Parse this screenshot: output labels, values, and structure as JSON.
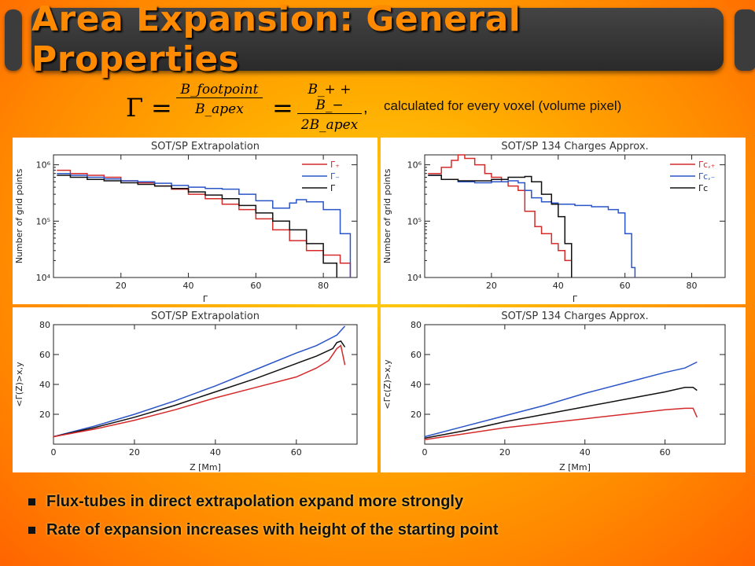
{
  "slide": {
    "title": "Area Expansion: General Properties",
    "formula": {
      "lhs": "Γ",
      "equals": "=",
      "frac1_num": "B_footpoint",
      "frac1_den": "B_apex",
      "frac2_num": "B_+ + B_−",
      "frac2_den": "2B_apex",
      "comma": ",",
      "note": "calculated for every voxel (volume pixel)"
    },
    "bullets": [
      "Flux-tubes in direct extrapolation expand more strongly",
      "Rate of expansion increases with height of the starting point"
    ]
  },
  "colors": {
    "red": "#d42a2a",
    "blue": "#2a55c8",
    "black": "#111111"
  },
  "chart_data": [
    {
      "type": "line",
      "title": "SOT/SP Extrapolation",
      "xlabel": "Γ",
      "ylabel": "Number of grid points",
      "xlim": [
        0,
        90
      ],
      "ylim": [
        10000,
        1500000
      ],
      "yscale": "log",
      "xticks": [
        "20",
        "40",
        "60",
        "80"
      ],
      "yticks": [
        "10⁴",
        "10⁵",
        "10⁶"
      ],
      "legend": "top-right",
      "series": [
        {
          "name": "Γ₊",
          "color": "red",
          "x": [
            1,
            5,
            10,
            15,
            20,
            25,
            30,
            35,
            40,
            45,
            50,
            55,
            60,
            65,
            70,
            75,
            80,
            85,
            88
          ],
          "y": [
            800000,
            700000,
            650000,
            600000,
            520000,
            480000,
            420000,
            370000,
            300000,
            250000,
            200000,
            160000,
            110000,
            70000,
            45000,
            30000,
            25000,
            18000,
            10000
          ]
        },
        {
          "name": "Γ₋",
          "color": "blue",
          "x": [
            1,
            5,
            10,
            15,
            20,
            25,
            30,
            35,
            40,
            45,
            50,
            55,
            60,
            65,
            70,
            72,
            75,
            80,
            85,
            88
          ],
          "y": [
            700000,
            650000,
            600000,
            560000,
            520000,
            500000,
            470000,
            430000,
            400000,
            380000,
            370000,
            300000,
            230000,
            170000,
            210000,
            240000,
            220000,
            160000,
            60000,
            10000
          ]
        },
        {
          "name": "Γ",
          "color": "black",
          "x": [
            1,
            5,
            10,
            15,
            20,
            25,
            30,
            35,
            40,
            45,
            50,
            55,
            60,
            65,
            70,
            75,
            80,
            84
          ],
          "y": [
            650000,
            600000,
            550000,
            520000,
            480000,
            450000,
            420000,
            380000,
            330000,
            290000,
            250000,
            190000,
            140000,
            100000,
            70000,
            40000,
            18000,
            10000
          ]
        }
      ]
    },
    {
      "type": "line",
      "title": "SOT/SP 134 Charges Approx.",
      "xlabel": "Γ",
      "ylabel": "Number of grid points",
      "xlim": [
        0,
        90
      ],
      "ylim": [
        10000,
        1500000
      ],
      "yscale": "log",
      "xticks": [
        "20",
        "40",
        "60",
        "80"
      ],
      "yticks": [
        "10⁴",
        "10⁵",
        "10⁶"
      ],
      "legend": "top-right",
      "series": [
        {
          "name": "Γc,₊",
          "color": "red",
          "x": [
            1,
            5,
            8,
            10,
            12,
            15,
            18,
            20,
            23,
            25,
            28,
            30,
            33,
            35,
            38,
            40,
            42,
            44
          ],
          "y": [
            700000,
            900000,
            1200000,
            1500000,
            1300000,
            1000000,
            700000,
            600000,
            500000,
            420000,
            350000,
            150000,
            80000,
            60000,
            40000,
            30000,
            20000,
            10000
          ]
        },
        {
          "name": "Γc,₋",
          "color": "blue",
          "x": [
            1,
            5,
            10,
            15,
            20,
            25,
            28,
            30,
            32,
            35,
            38,
            40,
            45,
            50,
            55,
            58,
            60,
            62,
            63
          ],
          "y": [
            650000,
            550000,
            500000,
            480000,
            500000,
            520000,
            480000,
            350000,
            260000,
            220000,
            210000,
            200000,
            190000,
            180000,
            160000,
            140000,
            60000,
            15000,
            10000
          ]
        },
        {
          "name": "Γc",
          "color": "black",
          "x": [
            1,
            5,
            10,
            15,
            20,
            25,
            30,
            32,
            35,
            38,
            40,
            42,
            44
          ],
          "y": [
            650000,
            550000,
            520000,
            520000,
            550000,
            600000,
            620000,
            500000,
            300000,
            200000,
            120000,
            40000,
            10000
          ]
        }
      ]
    },
    {
      "type": "line",
      "title": "SOT/SP Extrapolation",
      "xlabel": "Z [Mm]",
      "ylabel": "<Γ(Z)>x,y",
      "xlim": [
        0,
        75
      ],
      "ylim": [
        0,
        80
      ],
      "xticks": [
        "0",
        "20",
        "40",
        "60"
      ],
      "yticks": [
        "20",
        "40",
        "60",
        "80"
      ],
      "series": [
        {
          "color": "blue",
          "x": [
            0,
            10,
            20,
            30,
            40,
            50,
            60,
            65,
            70,
            72
          ],
          "y": [
            5,
            12,
            20,
            29,
            39,
            50,
            61,
            66,
            73,
            79
          ]
        },
        {
          "color": "black",
          "x": [
            0,
            10,
            20,
            30,
            40,
            50,
            60,
            65,
            69,
            70,
            71,
            72
          ],
          "y": [
            5,
            11,
            18,
            26,
            35,
            44,
            54,
            59,
            64,
            68,
            69,
            65
          ]
        },
        {
          "color": "red",
          "x": [
            0,
            10,
            20,
            30,
            40,
            50,
            60,
            65,
            68,
            70,
            71,
            72
          ],
          "y": [
            5,
            10,
            16,
            23,
            31,
            38,
            45,
            51,
            56,
            64,
            66,
            53
          ]
        }
      ]
    },
    {
      "type": "line",
      "title": "SOT/SP 134 Charges Approx.",
      "xlabel": "Z [Mm]",
      "ylabel": "<Γc(Z)>x,y",
      "xlim": [
        0,
        75
      ],
      "ylim": [
        0,
        80
      ],
      "xticks": [
        "0",
        "20",
        "40",
        "60"
      ],
      "yticks": [
        "20",
        "40",
        "60",
        "80"
      ],
      "series": [
        {
          "color": "blue",
          "x": [
            0,
            10,
            20,
            30,
            40,
            50,
            60,
            65,
            68
          ],
          "y": [
            5,
            12,
            19,
            26,
            34,
            41,
            48,
            51,
            55
          ]
        },
        {
          "color": "black",
          "x": [
            0,
            10,
            20,
            30,
            40,
            50,
            60,
            65,
            67,
            68
          ],
          "y": [
            4,
            9,
            15,
            20,
            25,
            30,
            35,
            38,
            38,
            36
          ]
        },
        {
          "color": "red",
          "x": [
            0,
            10,
            20,
            30,
            40,
            50,
            60,
            65,
            67,
            68
          ],
          "y": [
            3,
            7,
            11,
            14,
            17,
            20,
            23,
            24,
            24,
            18
          ]
        }
      ]
    }
  ]
}
